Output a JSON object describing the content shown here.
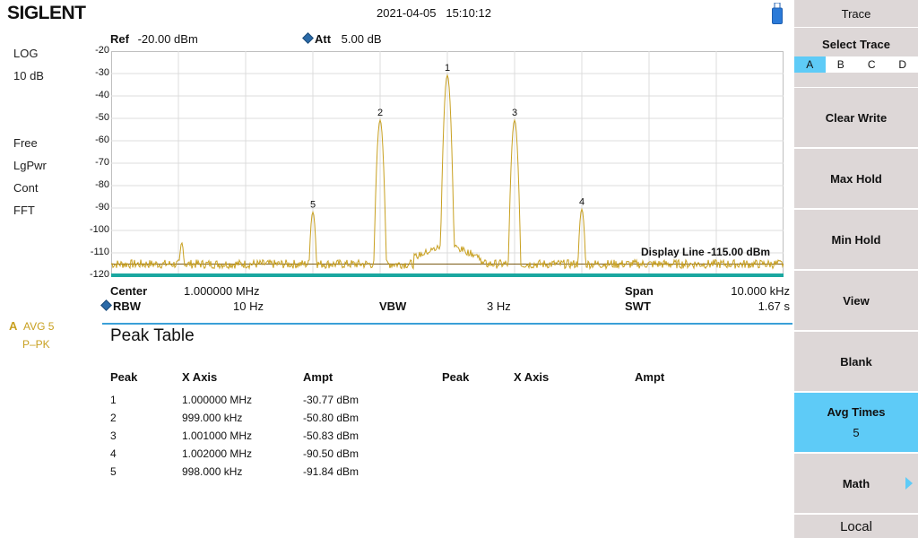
{
  "brand": "SIGLENT",
  "datetime": "2021-04-05   15:10:12",
  "header": {
    "ref_label": "Ref",
    "ref_value": "-20.00 dBm",
    "att_label": "Att",
    "att_value": "5.00 dB"
  },
  "left_panel": {
    "scale_type": "LOG",
    "scale_div": "10 dB",
    "trigger": "Free",
    "detector": "LgPwr",
    "sweep": "Cont",
    "mode": "FFT",
    "trace_letter": "A",
    "trace_avg": "AVG 5",
    "trace_det": "P–PK"
  },
  "y_axis": {
    "ticks": [
      "-20",
      "-30",
      "-40",
      "-50",
      "-60",
      "-70",
      "-80",
      "-90",
      "-100",
      "-110",
      "-120"
    ]
  },
  "display_line": "Display Line -115.00 dBm",
  "footer": {
    "center_label": "Center",
    "center_value": "1.000000 MHz",
    "span_label": "Span",
    "span_value": "10.000 kHz",
    "rbw_label": "RBW",
    "rbw_value": "10 Hz",
    "vbw_label": "VBW",
    "vbw_value": "3 Hz",
    "swt_label": "SWT",
    "swt_value": "1.67 s"
  },
  "peak_table": {
    "title": "Peak Table",
    "col_peak": "Peak",
    "col_x": "X Axis",
    "col_amp": "Ampt",
    "rows": [
      {
        "peak": "1",
        "x": "1.000000 MHz",
        "amp": "-30.77 dBm"
      },
      {
        "peak": "2",
        "x": "999.000 kHz",
        "amp": "-50.80 dBm"
      },
      {
        "peak": "3",
        "x": "1.001000 MHz",
        "amp": "-50.83 dBm"
      },
      {
        "peak": "4",
        "x": "1.002000 MHz",
        "amp": "-90.50 dBm"
      },
      {
        "peak": "5",
        "x": "998.000 kHz",
        "amp": "-91.84 dBm"
      }
    ]
  },
  "softkeys": {
    "menu_title": "Trace",
    "select_trace": "Select Trace",
    "trace_options": [
      "A",
      "B",
      "C",
      "D"
    ],
    "selected_trace": "A",
    "clear_write": "Clear Write",
    "max_hold": "Max Hold",
    "min_hold": "Min Hold",
    "view": "View",
    "blank": "Blank",
    "avg_times": "Avg Times",
    "avg_times_value": "5",
    "math": "Math",
    "local": "Local"
  },
  "colors": {
    "trace": "#c8a020",
    "accent": "#5ecbf7",
    "softkey_bg": "#ddd7d7"
  },
  "chart_data": {
    "type": "line",
    "x_unit": "MHz",
    "y_unit": "dBm",
    "xlim": [
      0.995,
      1.005
    ],
    "ylim": [
      -120,
      -20
    ],
    "grid": true,
    "reference_level": -20.0,
    "display_line": -115.0,
    "peaks": [
      {
        "label": "1",
        "x": 1.0,
        "y": -30.77
      },
      {
        "label": "2",
        "x": 0.999,
        "y": -50.8
      },
      {
        "label": "3",
        "x": 1.001,
        "y": -50.83
      },
      {
        "label": "4",
        "x": 1.002,
        "y": -90.5
      },
      {
        "label": "5",
        "x": 0.998,
        "y": -91.84
      }
    ],
    "spurs": [
      {
        "x": 0.99605,
        "y": -105.5
      }
    ],
    "noise_floor": -115.0
  }
}
